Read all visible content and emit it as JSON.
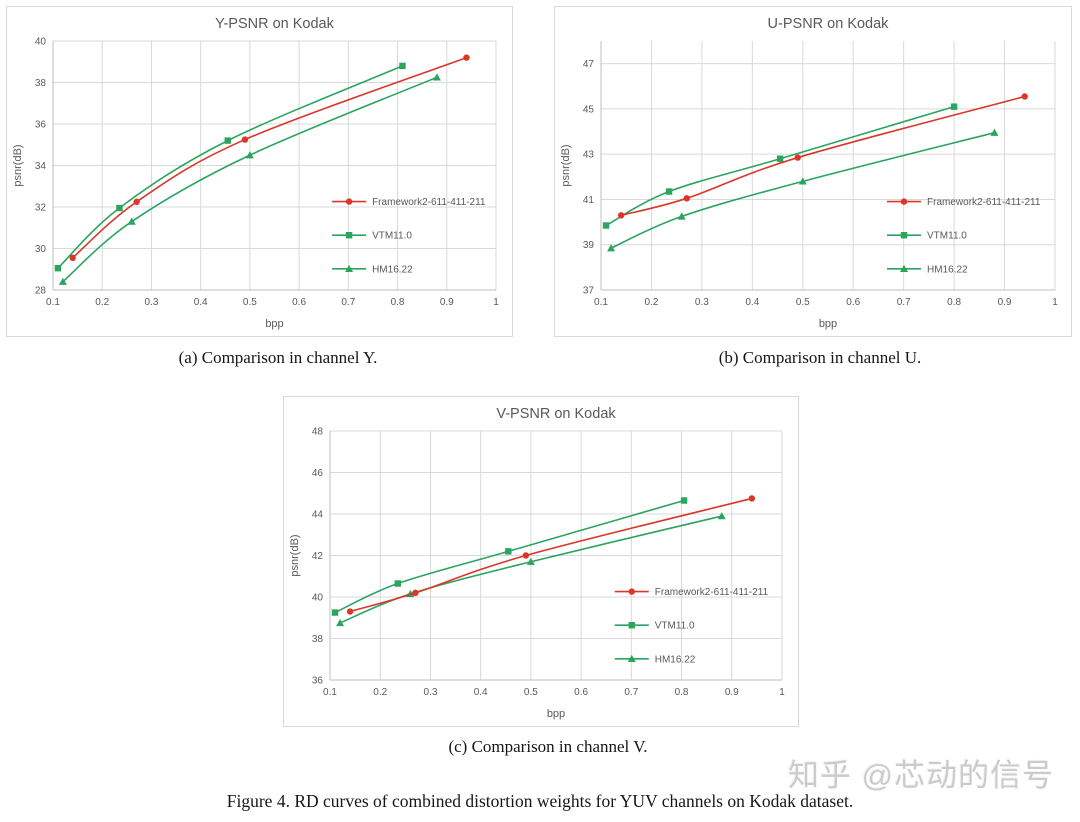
{
  "captions": {
    "a": "(a) Comparison in channel Y.",
    "b": "(b) Comparison in channel U.",
    "c": "(c) Comparison in channel V.",
    "figure": "Figure 4. RD curves of combined distortion weights for YUV channels on Kodak dataset."
  },
  "watermark": {
    "text": "知乎 @芯动的信号",
    "color": "#cbcbcb"
  },
  "styles": {
    "series_red": "#da362a",
    "series_green": "#2aa45e",
    "grid_color": "#d9d9d9",
    "axis_color": "#bfbfbf",
    "label_color": "#595959",
    "title_color": "#595959",
    "panel_border": "#d9d9d9",
    "background": "#ffffff"
  },
  "chart_data": [
    {
      "id": "y-psnr-on-kodak",
      "type": "line",
      "title": "Y-PSNR on Kodak",
      "xlabel": "bpp",
      "ylabel": "psnr(dB)",
      "xlim": [
        0.1,
        1
      ],
      "ylim": [
        28,
        40
      ],
      "xticks": [
        0.1,
        0.2,
        0.3,
        0.4,
        0.5,
        0.6,
        0.7,
        0.8,
        0.9,
        1
      ],
      "xtick_labels": [
        "0.1",
        "0.2",
        "0.3",
        "0.4",
        "0.5",
        "0.6",
        "0.7",
        "0.8",
        "0.9",
        "1"
      ],
      "yticks": [
        28,
        30,
        32,
        34,
        36,
        38,
        40
      ],
      "grid": true,
      "legend_position": "inside-lower-right",
      "series": [
        {
          "name": "Framework2-611-411-211",
          "color": "#da362a",
          "marker": "circle",
          "points": [
            [
              0.14,
              29.55
            ],
            [
              0.27,
              32.25
            ],
            [
              0.49,
              35.25
            ],
            [
              0.94,
              39.2
            ]
          ]
        },
        {
          "name": "VTM11.0",
          "color": "#2aa45e",
          "marker": "square",
          "points": [
            [
              0.11,
              29.05
            ],
            [
              0.235,
              31.95
            ],
            [
              0.455,
              35.2
            ],
            [
              0.81,
              38.8
            ]
          ]
        },
        {
          "name": "HM16.22",
          "color": "#2aa45e",
          "marker": "triangle",
          "points": [
            [
              0.12,
              28.4
            ],
            [
              0.26,
              31.3
            ],
            [
              0.5,
              34.5
            ],
            [
              0.88,
              38.25
            ]
          ]
        }
      ]
    },
    {
      "id": "u-psnr-on-kodak",
      "type": "line",
      "title": "U-PSNR on Kodak",
      "xlabel": "bpp",
      "ylabel": "psnr(dB)",
      "xlim": [
        0.1,
        1
      ],
      "ylim": [
        37,
        48
      ],
      "xticks": [
        0.1,
        0.2,
        0.3,
        0.4,
        0.5,
        0.6,
        0.7,
        0.8,
        0.9,
        1
      ],
      "xtick_labels": [
        "0.1",
        "0.2",
        "0.3",
        "0.4",
        "0.5",
        "0.6",
        "0.7",
        "0.8",
        "0.9",
        "1"
      ],
      "yticks": [
        37,
        39,
        41,
        43,
        45,
        47
      ],
      "grid": true,
      "legend_position": "inside-lower-right",
      "series": [
        {
          "name": "Framework2-611-411-211",
          "color": "#da362a",
          "marker": "circle",
          "points": [
            [
              0.14,
              40.3
            ],
            [
              0.27,
              41.05
            ],
            [
              0.49,
              42.85
            ],
            [
              0.94,
              45.55
            ]
          ]
        },
        {
          "name": "VTM11.0",
          "color": "#2aa45e",
          "marker": "square",
          "points": [
            [
              0.11,
              39.85
            ],
            [
              0.235,
              41.35
            ],
            [
              0.455,
              42.8
            ],
            [
              0.8,
              45.1
            ]
          ]
        },
        {
          "name": "HM16.22",
          "color": "#2aa45e",
          "marker": "triangle",
          "points": [
            [
              0.12,
              38.85
            ],
            [
              0.26,
              40.25
            ],
            [
              0.5,
              41.8
            ],
            [
              0.88,
              43.95
            ]
          ]
        }
      ]
    },
    {
      "id": "v-psnr-on-kodak",
      "type": "line",
      "title": "V-PSNR on Kodak",
      "xlabel": "bpp",
      "ylabel": "psnr(dB)",
      "xlim": [
        0.1,
        1
      ],
      "ylim": [
        36,
        48
      ],
      "xticks": [
        0.1,
        0.2,
        0.3,
        0.4,
        0.5,
        0.6,
        0.7,
        0.8,
        0.9,
        1
      ],
      "xtick_labels": [
        "0.1",
        "0.2",
        "0.3",
        "0.4",
        "0.5",
        "0.6",
        "0.7",
        "0.8",
        "0.9",
        "1"
      ],
      "yticks": [
        36,
        38,
        40,
        42,
        44,
        46,
        48
      ],
      "grid": true,
      "legend_position": "inside-lower-right",
      "series": [
        {
          "name": "Framework2-611-411-211",
          "color": "#da362a",
          "marker": "circle",
          "points": [
            [
              0.14,
              39.3
            ],
            [
              0.27,
              40.2
            ],
            [
              0.49,
              42.0
            ],
            [
              0.94,
              44.75
            ]
          ]
        },
        {
          "name": "VTM11.0",
          "color": "#2aa45e",
          "marker": "square",
          "points": [
            [
              0.11,
              39.25
            ],
            [
              0.235,
              40.65
            ],
            [
              0.455,
              42.2
            ],
            [
              0.805,
              44.65
            ]
          ]
        },
        {
          "name": "HM16.22",
          "color": "#2aa45e",
          "marker": "triangle",
          "points": [
            [
              0.12,
              38.75
            ],
            [
              0.26,
              40.15
            ],
            [
              0.5,
              41.7
            ],
            [
              0.88,
              43.9
            ]
          ]
        }
      ]
    }
  ]
}
